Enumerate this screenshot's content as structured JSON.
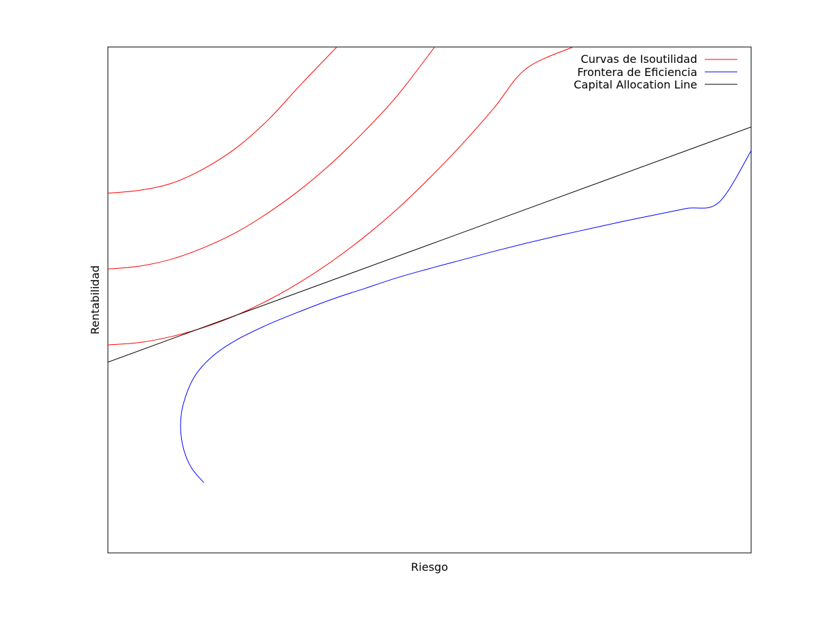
{
  "chart_data": {
    "type": "line",
    "xlabel": "Riesgo",
    "ylabel": "Rentabilidad",
    "xlim": [
      0,
      1
    ],
    "ylim": [
      0,
      1
    ],
    "ticks_shown": false,
    "grid": false,
    "legend": "top-right",
    "series": [
      {
        "name": "Curvas de Isoutilidad",
        "color": "#ff0000",
        "curves": [
          [
            [
              0.0,
              0.711
            ],
            [
              0.05,
              0.717
            ],
            [
              0.1,
              0.731
            ],
            [
              0.15,
              0.76
            ],
            [
              0.2,
              0.801
            ],
            [
              0.25,
              0.857
            ],
            [
              0.3,
              0.926
            ],
            [
              0.356,
              1.0
            ]
          ],
          [
            [
              0.0,
              0.561
            ],
            [
              0.05,
              0.567
            ],
            [
              0.1,
              0.581
            ],
            [
              0.15,
              0.604
            ],
            [
              0.2,
              0.634
            ],
            [
              0.25,
              0.673
            ],
            [
              0.3,
              0.719
            ],
            [
              0.35,
              0.773
            ],
            [
              0.4,
              0.835
            ],
            [
              0.45,
              0.904
            ],
            [
              0.508,
              1.0
            ]
          ],
          [
            [
              0.0,
              0.411
            ],
            [
              0.05,
              0.416
            ],
            [
              0.1,
              0.428
            ],
            [
              0.15,
              0.446
            ],
            [
              0.2,
              0.47
            ],
            [
              0.25,
              0.5
            ],
            [
              0.3,
              0.536
            ],
            [
              0.35,
              0.578
            ],
            [
              0.4,
              0.626
            ],
            [
              0.45,
              0.68
            ],
            [
              0.5,
              0.741
            ],
            [
              0.55,
              0.807
            ],
            [
              0.6,
              0.879
            ],
            [
              0.65,
              0.957
            ],
            [
              0.723,
              1.0
            ]
          ]
        ]
      },
      {
        "name": "Frontera de Eficiencia",
        "color": "#0000ff",
        "points": [
          [
            0.149,
            0.139
          ],
          [
            0.13,
            0.168
          ],
          [
            0.118,
            0.204
          ],
          [
            0.113,
            0.248
          ],
          [
            0.117,
            0.293
          ],
          [
            0.134,
            0.347
          ],
          [
            0.162,
            0.388
          ],
          [
            0.2,
            0.421
          ],
          [
            0.25,
            0.452
          ],
          [
            0.3,
            0.478
          ],
          [
            0.35,
            0.502
          ],
          [
            0.4,
            0.523
          ],
          [
            0.45,
            0.544
          ],
          [
            0.5,
            0.562
          ],
          [
            0.55,
            0.579
          ],
          [
            0.6,
            0.596
          ],
          [
            0.65,
            0.612
          ],
          [
            0.7,
            0.627
          ],
          [
            0.75,
            0.641
          ],
          [
            0.8,
            0.655
          ],
          [
            0.85,
            0.668
          ],
          [
            0.9,
            0.681
          ],
          [
            0.95,
            0.693
          ],
          [
            1.0,
            0.795
          ]
        ]
      },
      {
        "name": "Capital Allocation Line",
        "color": "#000000",
        "points": [
          [
            0.0,
            0.377
          ],
          [
            1.0,
            0.842
          ]
        ]
      }
    ]
  }
}
